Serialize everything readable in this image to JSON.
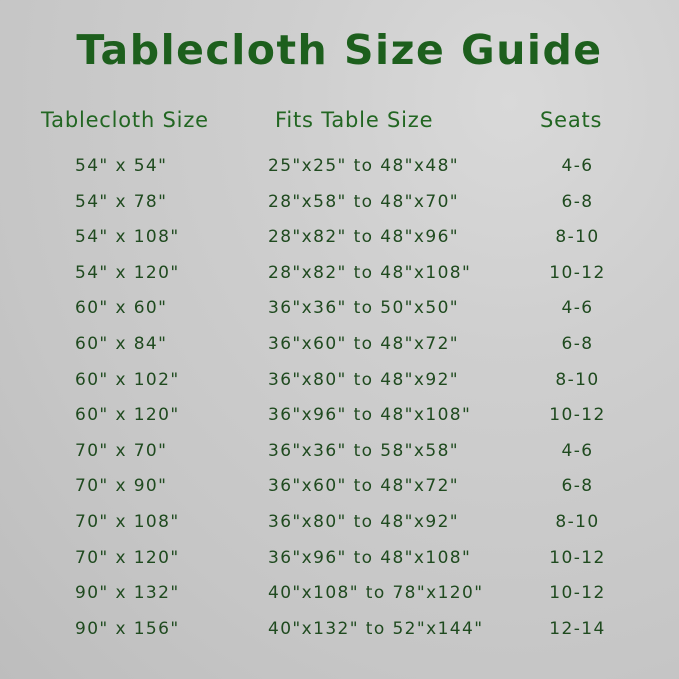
{
  "title": "Tablecloth Size Guide",
  "headers": {
    "size": "Tablecloth Size",
    "fits": "Fits Table Size",
    "seats": "Seats"
  },
  "rows": [
    {
      "size": "54\" x 54\"",
      "fits": "25\"x25\" to 48\"x48\"",
      "seats": "4-6"
    },
    {
      "size": "54\" x 78\"",
      "fits": "28\"x58\" to 48\"x70\"",
      "seats": "6-8"
    },
    {
      "size": "54\" x 108\"",
      "fits": "28\"x82\" to 48\"x96\"",
      "seats": "8-10"
    },
    {
      "size": "54\" x 120\"",
      "fits": "28\"x82\" to 48\"x108\"",
      "seats": "10-12"
    },
    {
      "size": "60\" x 60\"",
      "fits": "36\"x36\" to 50\"x50\"",
      "seats": "4-6"
    },
    {
      "size": "60\" x 84\"",
      "fits": "36\"x60\" to 48\"x72\"",
      "seats": "6-8"
    },
    {
      "size": "60\" x 102\"",
      "fits": "36\"x80\" to 48\"x92\"",
      "seats": "8-10"
    },
    {
      "size": "60\" x 120\"",
      "fits": "36\"x96\" to 48\"x108\"",
      "seats": "10-12"
    },
    {
      "size": "70\" x 70\"",
      "fits": "36\"x36\" to 58\"x58\"",
      "seats": "4-6"
    },
    {
      "size": "70\" x 90\"",
      "fits": "36\"x60\" to 48\"x72\"",
      "seats": "6-8"
    },
    {
      "size": "70\" x 108\"",
      "fits": "36\"x80\" to 48\"x92\"",
      "seats": "8-10"
    },
    {
      "size": "70\" x 120\"",
      "fits": "36\"x96\" to 48\"x108\"",
      "seats": "10-12"
    },
    {
      "size": "90\" x 132\"",
      "fits": "40\"x108\" to 78\"x120\"",
      "seats": "10-12"
    },
    {
      "size": "90\" x 156\"",
      "fits": "40\"x132\" to 52\"x144\"",
      "seats": "12-14"
    }
  ],
  "colors": {
    "title": "#1d5f1d",
    "header": "#226622",
    "text": "#1f4a1f",
    "background": "#cacaca"
  }
}
